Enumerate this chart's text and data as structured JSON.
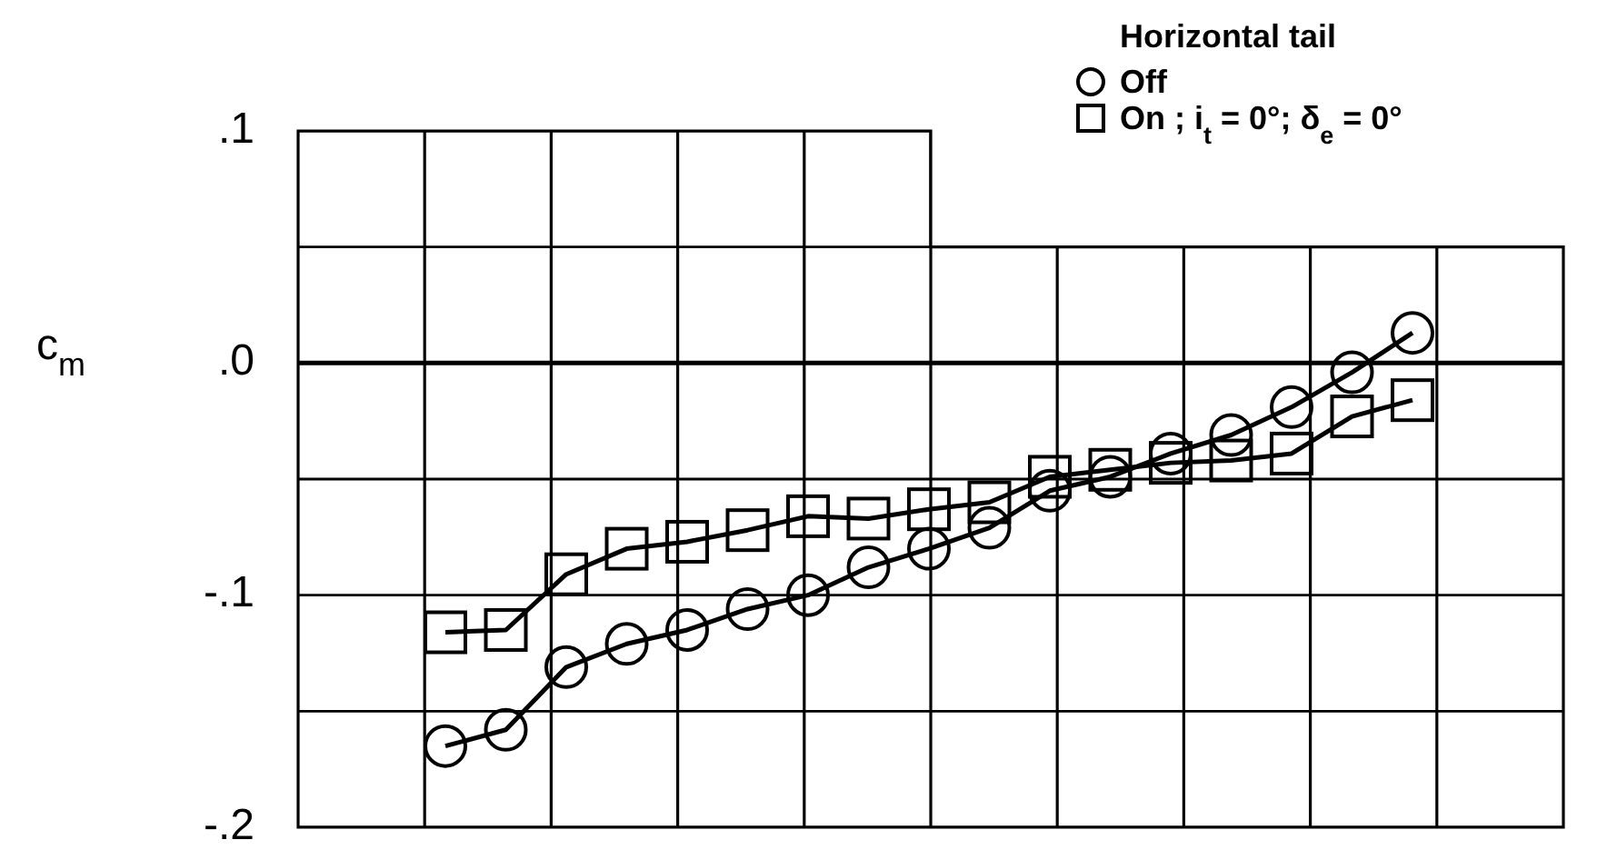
{
  "chart_data": {
    "type": "line",
    "ylabel": "c$_{m}$",
    "legend_title": "Horizontal tail",
    "legend": "top right",
    "grid": true,
    "tick_labels": "y",
    "line_style": "solid",
    "categories": [
      null,
      null,
      null,
      null,
      null,
      null,
      null,
      null,
      null,
      null,
      null,
      null,
      null,
      null,
      null,
      null,
      null
    ],
    "ylim": [
      -0.2,
      0.1
    ],
    "yticks": [
      {
        "value": -0.2,
        "label": "-.2"
      },
      {
        "value": -0.15,
        "label": null
      },
      {
        "value": -0.1,
        "label": "-.1"
      },
      {
        "value": -0.05,
        "label": null
      },
      {
        "value": 0,
        "label": ".0"
      },
      {
        "value": 0.05,
        "label": null
      },
      {
        "value": 0.1,
        "label": ".1"
      }
    ],
    "series": [
      {
        "name": "Off",
        "color": "#000000",
        "marker": "circle",
        "values": [
          -0.165,
          -0.158,
          -0.131,
          -0.121,
          -0.115,
          -0.106,
          -0.1,
          -0.088,
          -0.08,
          -0.071,
          -0.055,
          -0.049,
          -0.039,
          -0.031,
          -0.019,
          -0.004,
          0.013
        ]
      },
      {
        "name": "On ; i$_{t}$ = 0°; δ$_{e}$ = 0°",
        "color": "#000000",
        "marker": "square",
        "values": [
          -0.116,
          -0.115,
          -0.091,
          -0.08,
          -0.077,
          -0.072,
          -0.066,
          -0.067,
          -0.063,
          -0.06,
          -0.049,
          -0.046,
          -0.043,
          -0.042,
          -0.039,
          -0.023,
          -0.016
        ]
      }
    ]
  }
}
